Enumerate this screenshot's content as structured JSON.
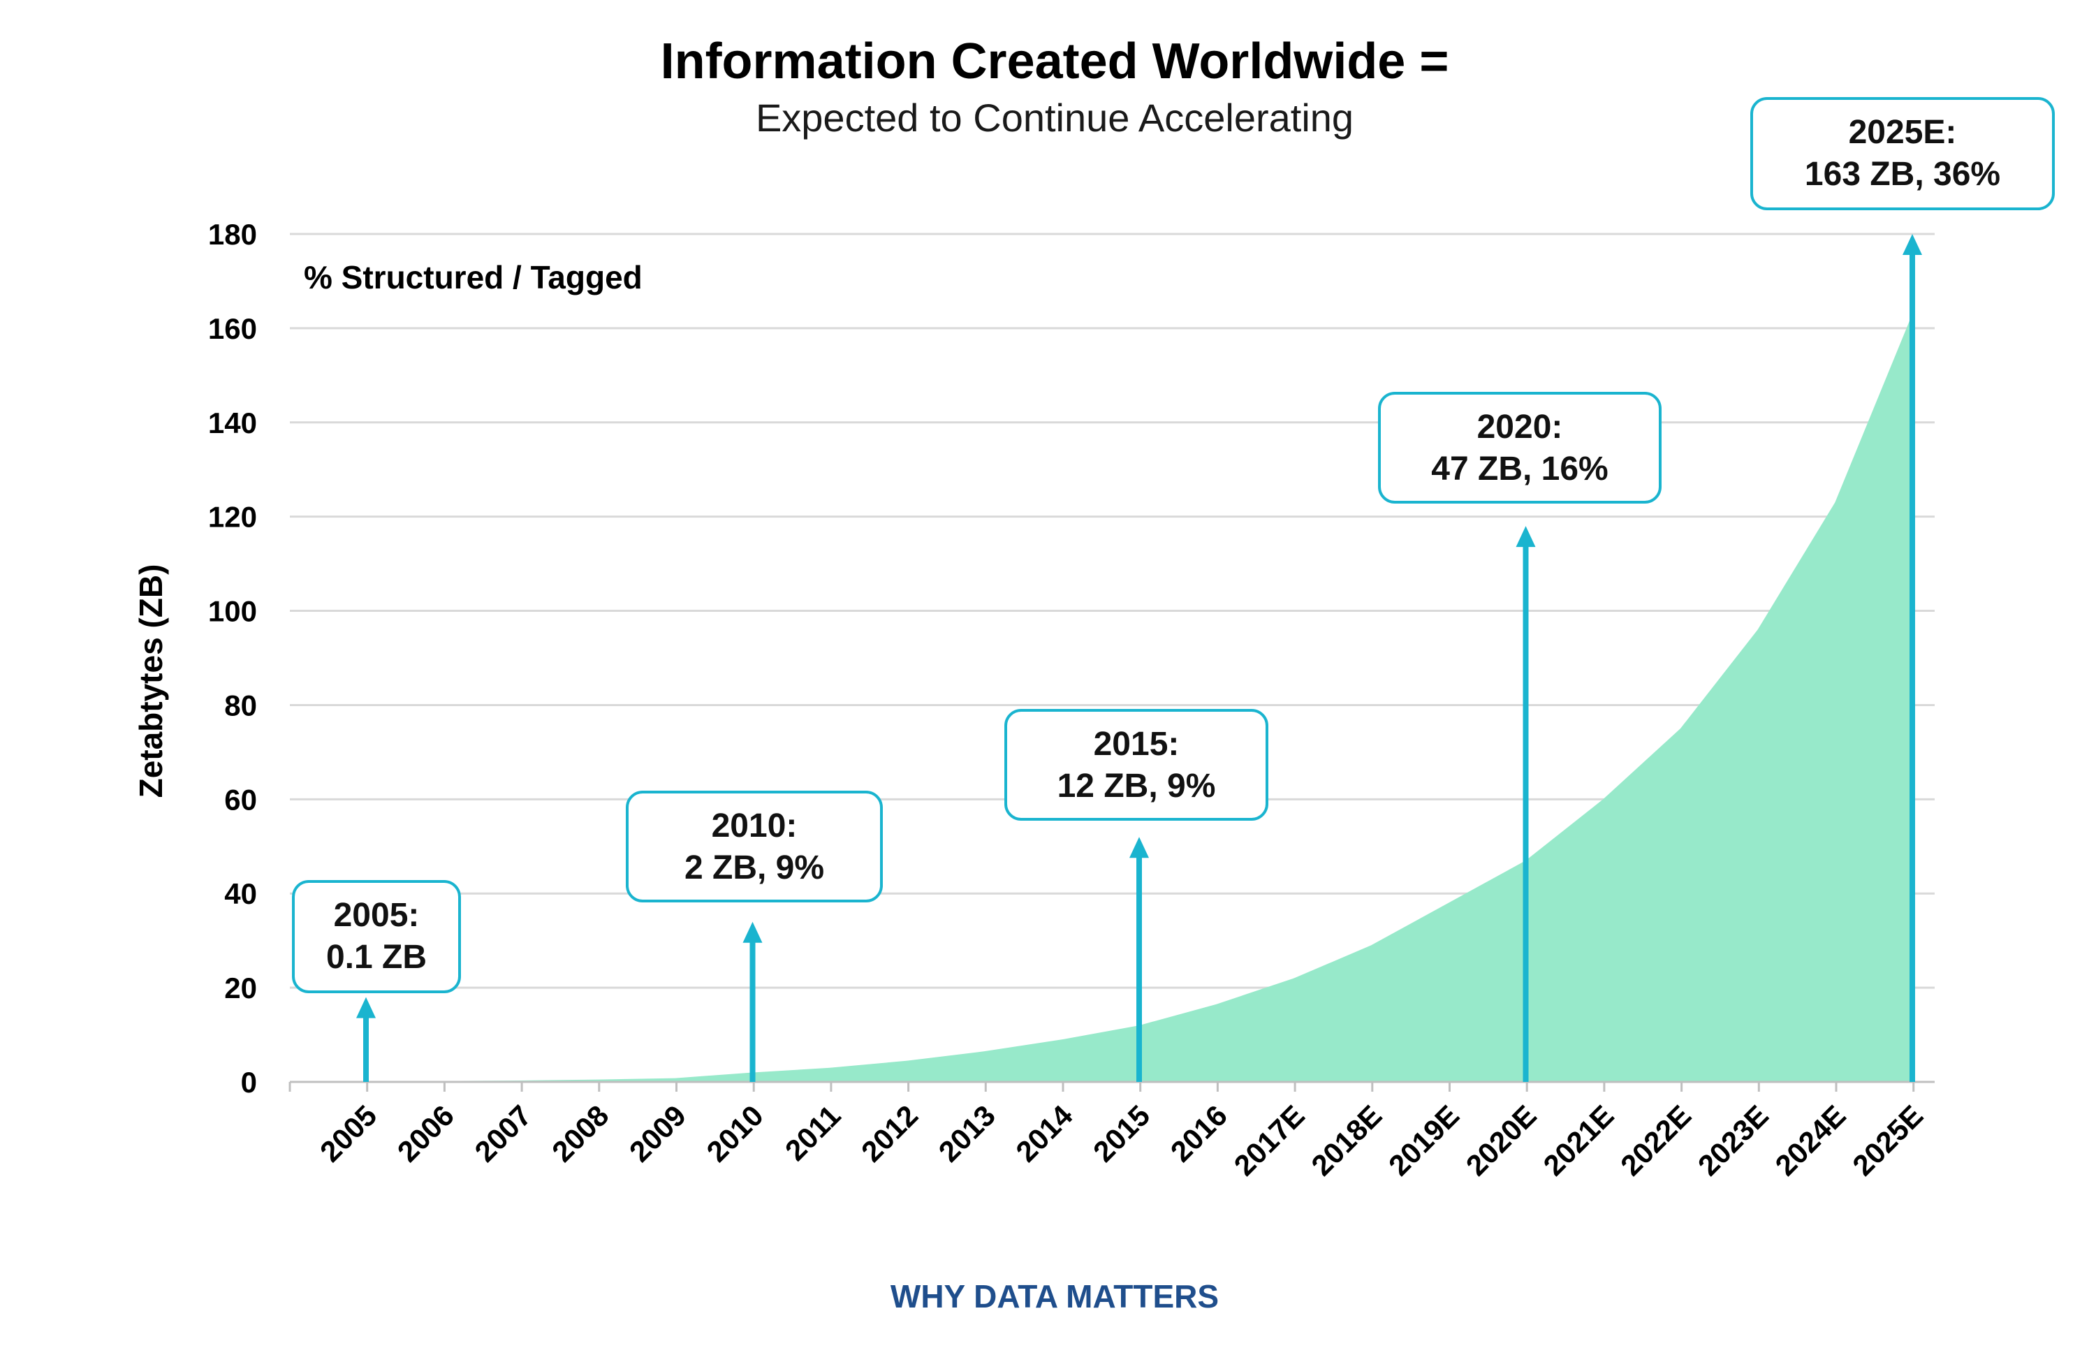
{
  "chart_data": {
    "type": "area",
    "title": "Information Created Worldwide =",
    "subtitle": "Expected to Continue Accelerating",
    "ylabel": "Zetabtytes (ZB)",
    "xlabel": "",
    "ylim": [
      0,
      180
    ],
    "yticks": [
      0,
      20,
      40,
      60,
      80,
      100,
      120,
      140,
      160,
      180
    ],
    "grid": true,
    "categories": [
      "2005",
      "2006",
      "2007",
      "2008",
      "2009",
      "2010",
      "2011",
      "2012",
      "2013",
      "2014",
      "2015",
      "2016",
      "2017E",
      "2018E",
      "2019E",
      "2020E",
      "2021E",
      "2022E",
      "2023E",
      "2024E",
      "2025E"
    ],
    "values": [
      0.1,
      0.2,
      0.3,
      0.5,
      0.8,
      2,
      3,
      4.5,
      6.5,
      9,
      12,
      16.5,
      22,
      29,
      38,
      47,
      60,
      75,
      96,
      123,
      163
    ],
    "annotation_note": "% Structured / Tagged",
    "callouts": [
      {
        "category": "2005",
        "line1": "2005:",
        "line2": "0.1 ZB",
        "arrow_top": 18
      },
      {
        "category": "2010",
        "line1": "2010:",
        "line2": "2 ZB, 9%",
        "arrow_top": 34
      },
      {
        "category": "2015",
        "line1": "2015:",
        "line2": "12 ZB, 9%",
        "arrow_top": 52
      },
      {
        "category": "2020E",
        "line1": "2020:",
        "line2": "47 ZB, 16%",
        "arrow_top": 118
      },
      {
        "category": "2025E",
        "line1": "2025E:",
        "line2": "163 ZB, 36%",
        "arrow_top": 180
      }
    ],
    "colors": {
      "area": "#97E9CA",
      "arrow": "#1AB4CF",
      "callout_border": "#1AB4CF",
      "grid": "#d9d9d9",
      "axis": "#bfbfbf"
    }
  },
  "footer": {
    "text": "WHY DATA MATTERS",
    "color": "#1F4E8C"
  }
}
